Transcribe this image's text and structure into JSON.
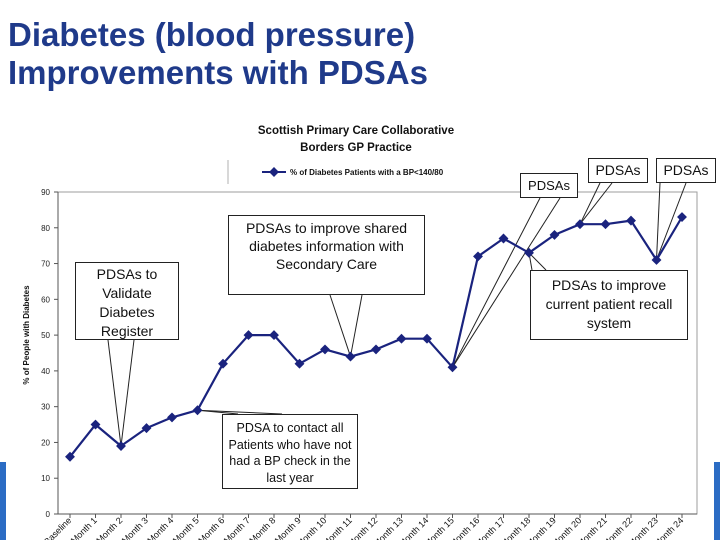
{
  "slide": {
    "title_line1": "Diabetes (blood pressure)",
    "title_line2": "Improvements with PDSAs"
  },
  "chart_data": {
    "type": "line",
    "title": "Scottish Primary Care Collaborative",
    "subtitle": "Borders GP Practice",
    "xlabel": "",
    "ylabel": "% of People with Diabetes",
    "ylim": [
      0,
      90
    ],
    "yticks": [
      0,
      10,
      20,
      30,
      40,
      50,
      60,
      70,
      80,
      90
    ],
    "grid": false,
    "legend_position": "top-center",
    "color": "#1a237e",
    "categories": [
      "Baseline",
      "Month 1",
      "Month 2",
      "Month 3",
      "Month 4",
      "Month 5",
      "Month 6",
      "Month 7",
      "Month 8",
      "Month 9",
      "Month 10",
      "Month 11",
      "Month 12",
      "Month 13",
      "Month 14",
      "Month 15",
      "Month 16",
      "Month 17",
      "Month 18",
      "Month 19",
      "Month 20",
      "Month 21",
      "Month 22",
      "Month 23",
      "Month 24"
    ],
    "series": [
      {
        "name": "% of Diabetes Patients with a BP<140/80",
        "values": [
          16,
          25,
          19,
          24,
          27,
          29,
          42,
          50,
          50,
          42,
          46,
          44,
          46,
          49,
          49,
          41,
          72,
          77,
          73,
          78,
          81,
          81,
          82,
          71,
          83
        ]
      }
    ]
  },
  "annotations": {
    "validate": "PDSAs to Validate Diabetes Register",
    "shared": "PDSAs to improve shared diabetes information with Secondary Care",
    "contact": "PDSA to contact all Patients who have not had a BP check in the last year",
    "recall": "PDSAs to improve current patient recall system",
    "pdsas_1": "PDSAs",
    "pdsas_2": "PDSAs",
    "pdsas_3": "PDSAs"
  }
}
